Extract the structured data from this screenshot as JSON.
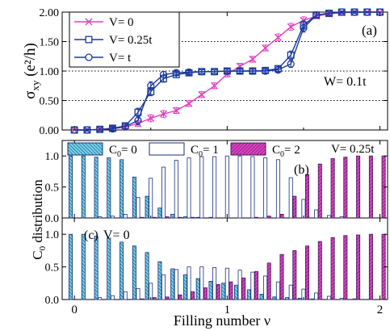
{
  "chart_data": [
    {
      "panel": "(a)",
      "type": "line",
      "ylabel_main": "σ",
      "ylabel_sub": "xy",
      "ylabel_unit": " (e²/h)",
      "ylim": [
        0,
        2
      ],
      "yticks": [
        "0.00",
        "0.50",
        "1.00",
        "1.50",
        "2.00"
      ],
      "xlim": [
        -0.08,
        2.05
      ],
      "annotation": "W= 0.1t",
      "dotted_lines_at": [
        0.5,
        1.0,
        1.5
      ],
      "legend_position": "top-left",
      "series": [
        {
          "name": "V= 0",
          "color": "#e040c0",
          "marker": "x",
          "x": [
            0,
            0.0833,
            0.1667,
            0.25,
            0.3333,
            0.4167,
            0.5,
            0.5833,
            0.6667,
            0.75,
            0.8333,
            0.9167,
            1.0,
            1.0833,
            1.1667,
            1.25,
            1.3333,
            1.4167,
            1.5,
            1.5833,
            1.6667,
            1.75,
            1.8333,
            1.9167,
            2.0
          ],
          "y": [
            0,
            0.0,
            0.01,
            0.02,
            0.05,
            0.11,
            0.2,
            0.27,
            0.33,
            0.45,
            0.6,
            0.75,
            0.95,
            1.08,
            1.2,
            1.39,
            1.57,
            1.75,
            1.86,
            1.93,
            1.97,
            1.99,
            2.0,
            2.0,
            2.0
          ],
          "err": [
            0,
            0,
            0.03,
            0.03,
            0.04,
            0.05,
            0.06,
            0.06,
            0.05,
            0.05,
            0.05,
            0.05,
            0.05,
            0.05,
            0.05,
            0.05,
            0.06,
            0.06,
            0.06,
            0.04,
            0.03,
            0.02,
            0.02,
            0.01,
            0
          ]
        },
        {
          "name": "V= 0.25t",
          "color": "#1b3a9e",
          "marker": "square",
          "x": [
            0,
            0.0833,
            0.1667,
            0.25,
            0.3333,
            0.4167,
            0.5,
            0.5833,
            0.6667,
            0.75,
            0.8333,
            0.9167,
            1.0,
            1.0833,
            1.1667,
            1.25,
            1.3333,
            1.4167,
            1.5,
            1.5833,
            1.6667,
            1.75,
            1.8333,
            1.9167,
            2.0
          ],
          "y": [
            0,
            0.0,
            0.01,
            0.03,
            0.07,
            0.3,
            0.65,
            0.87,
            0.94,
            0.97,
            0.99,
            0.99,
            1.0,
            1.0,
            1.0,
            1.01,
            1.04,
            1.27,
            1.78,
            1.95,
            1.98,
            2.0,
            2.0,
            2.0,
            2.0
          ],
          "err": [
            0,
            0.02,
            0.03,
            0.03,
            0.05,
            0.07,
            0.07,
            0.06,
            0.05,
            0.03,
            0.03,
            0.03,
            0.04,
            0.04,
            0.04,
            0.04,
            0.05,
            0.07,
            0.07,
            0.04,
            0.03,
            0.02,
            0.02,
            0.01,
            0
          ]
        },
        {
          "name": "V= t",
          "color": "#1b3a9e",
          "marker": "circle",
          "x": [
            0,
            0.0833,
            0.1667,
            0.25,
            0.3333,
            0.4167,
            0.5,
            0.5833,
            0.6667,
            0.75,
            0.8333,
            0.9167,
            1.0,
            1.0833,
            1.1667,
            1.25,
            1.3333,
            1.4167,
            1.5,
            1.5833,
            1.6667,
            1.75,
            1.8333,
            1.9167,
            2.0
          ],
          "y": [
            0,
            0.0,
            0.01,
            0.02,
            0.06,
            0.16,
            0.75,
            0.94,
            0.97,
            0.98,
            0.99,
            0.99,
            1.0,
            1.0,
            1.0,
            1.0,
            1.02,
            1.12,
            1.73,
            1.95,
            1.98,
            2.0,
            2.0,
            2.0,
            2.0
          ],
          "err": [
            0,
            0.02,
            0.03,
            0.03,
            0.05,
            0.07,
            0.07,
            0.05,
            0.04,
            0.03,
            0.03,
            0.03,
            0.03,
            0.03,
            0.03,
            0.03,
            0.05,
            0.06,
            0.07,
            0.04,
            0.03,
            0.02,
            0.02,
            0.01,
            0
          ]
        }
      ]
    },
    {
      "panel": "(b)",
      "type": "bar",
      "annotation": "V= 0.25t",
      "ylim": [
        0,
        1.25
      ],
      "yticks": [
        "0.0",
        "0.5",
        "1.0"
      ],
      "legend": [
        "C",
        "= 0",
        "C",
        "= 1",
        "C",
        "= 2"
      ],
      "legend_sub": "0",
      "x": [
        0,
        0.0833,
        0.1667,
        0.25,
        0.3333,
        0.4167,
        0.5,
        0.5833,
        0.6667,
        0.75,
        0.8333,
        0.9167,
        1.0,
        1.0833,
        1.1667,
        1.25,
        1.3333,
        1.4167,
        1.5,
        1.5833,
        1.6667,
        1.75,
        1.8333,
        1.9167,
        2.0
      ],
      "series": [
        {
          "name": "C0= 0",
          "values": [
            1.0,
            1.0,
            0.98,
            0.97,
            0.94,
            0.66,
            0.35,
            0.16,
            0.06,
            0.02,
            0.01,
            0.01,
            0,
            0,
            0,
            0,
            0,
            0,
            0,
            0,
            0,
            0,
            0,
            0,
            0
          ]
        },
        {
          "name": "C0= 1",
          "values": [
            0,
            0,
            0.02,
            0.03,
            0.06,
            0.33,
            0.64,
            0.82,
            0.93,
            0.97,
            0.99,
            0.99,
            1.0,
            1.0,
            0.99,
            0.97,
            0.94,
            0.65,
            0.3,
            0.13,
            0.04,
            0.02,
            0,
            0,
            0
          ]
        },
        {
          "name": "C0= 2",
          "values": [
            0,
            0,
            0,
            0,
            0,
            0.01,
            0.01,
            0.02,
            0.01,
            0.01,
            0,
            0,
            0,
            0,
            0.01,
            0.03,
            0.06,
            0.35,
            0.7,
            0.87,
            0.96,
            0.98,
            1.0,
            1.0,
            1.0
          ]
        }
      ]
    },
    {
      "panel": "(c)",
      "type": "bar",
      "annotation": "V= 0",
      "ylim": [
        0,
        1.25
      ],
      "yticks": [
        "0.0",
        "0.5",
        "1.0"
      ],
      "x": [
        0,
        0.0833,
        0.1667,
        0.25,
        0.3333,
        0.4167,
        0.5,
        0.5833,
        0.6667,
        0.75,
        0.8333,
        0.9167,
        1.0,
        1.0833,
        1.1667,
        1.25,
        1.3333,
        1.4167,
        1.5,
        1.5833,
        1.6667,
        1.75,
        1.8333,
        1.9167,
        2.0
      ],
      "series": [
        {
          "name": "C0= 0",
          "values": [
            1.0,
            1.0,
            0.97,
            0.94,
            0.88,
            0.82,
            0.72,
            0.58,
            0.47,
            0.38,
            0.32,
            0.28,
            0.25,
            0.22,
            0.15,
            0.08,
            0.04,
            0.03,
            0.02,
            0.01,
            0,
            0,
            0,
            0,
            0
          ]
        },
        {
          "name": "C0= 1",
          "values": [
            0,
            0,
            0.03,
            0.06,
            0.12,
            0.17,
            0.25,
            0.38,
            0.46,
            0.5,
            0.5,
            0.49,
            0.48,
            0.45,
            0.42,
            0.36,
            0.27,
            0.22,
            0.16,
            0.1,
            0.05,
            0.02,
            0.01,
            0,
            0
          ]
        },
        {
          "name": "C0= 2",
          "values": [
            0,
            0,
            0,
            0,
            0,
            0.01,
            0.03,
            0.04,
            0.07,
            0.12,
            0.18,
            0.23,
            0.27,
            0.33,
            0.43,
            0.56,
            0.69,
            0.75,
            0.82,
            0.89,
            0.95,
            0.98,
            0.99,
            1.0,
            1.0
          ]
        }
      ]
    }
  ],
  "xaxis": {
    "label": "Filling number ν",
    "ticks": [
      "0",
      "1",
      "2"
    ]
  },
  "bottom_ylabel": {
    "main": "C",
    "sub": "0",
    "rest": " distribution"
  },
  "colors": {
    "c0_0": "#6fd3e6",
    "c0_1": "#ffffff",
    "c0_2": "#e040c0",
    "bar_edge": "#1b2f7a"
  }
}
